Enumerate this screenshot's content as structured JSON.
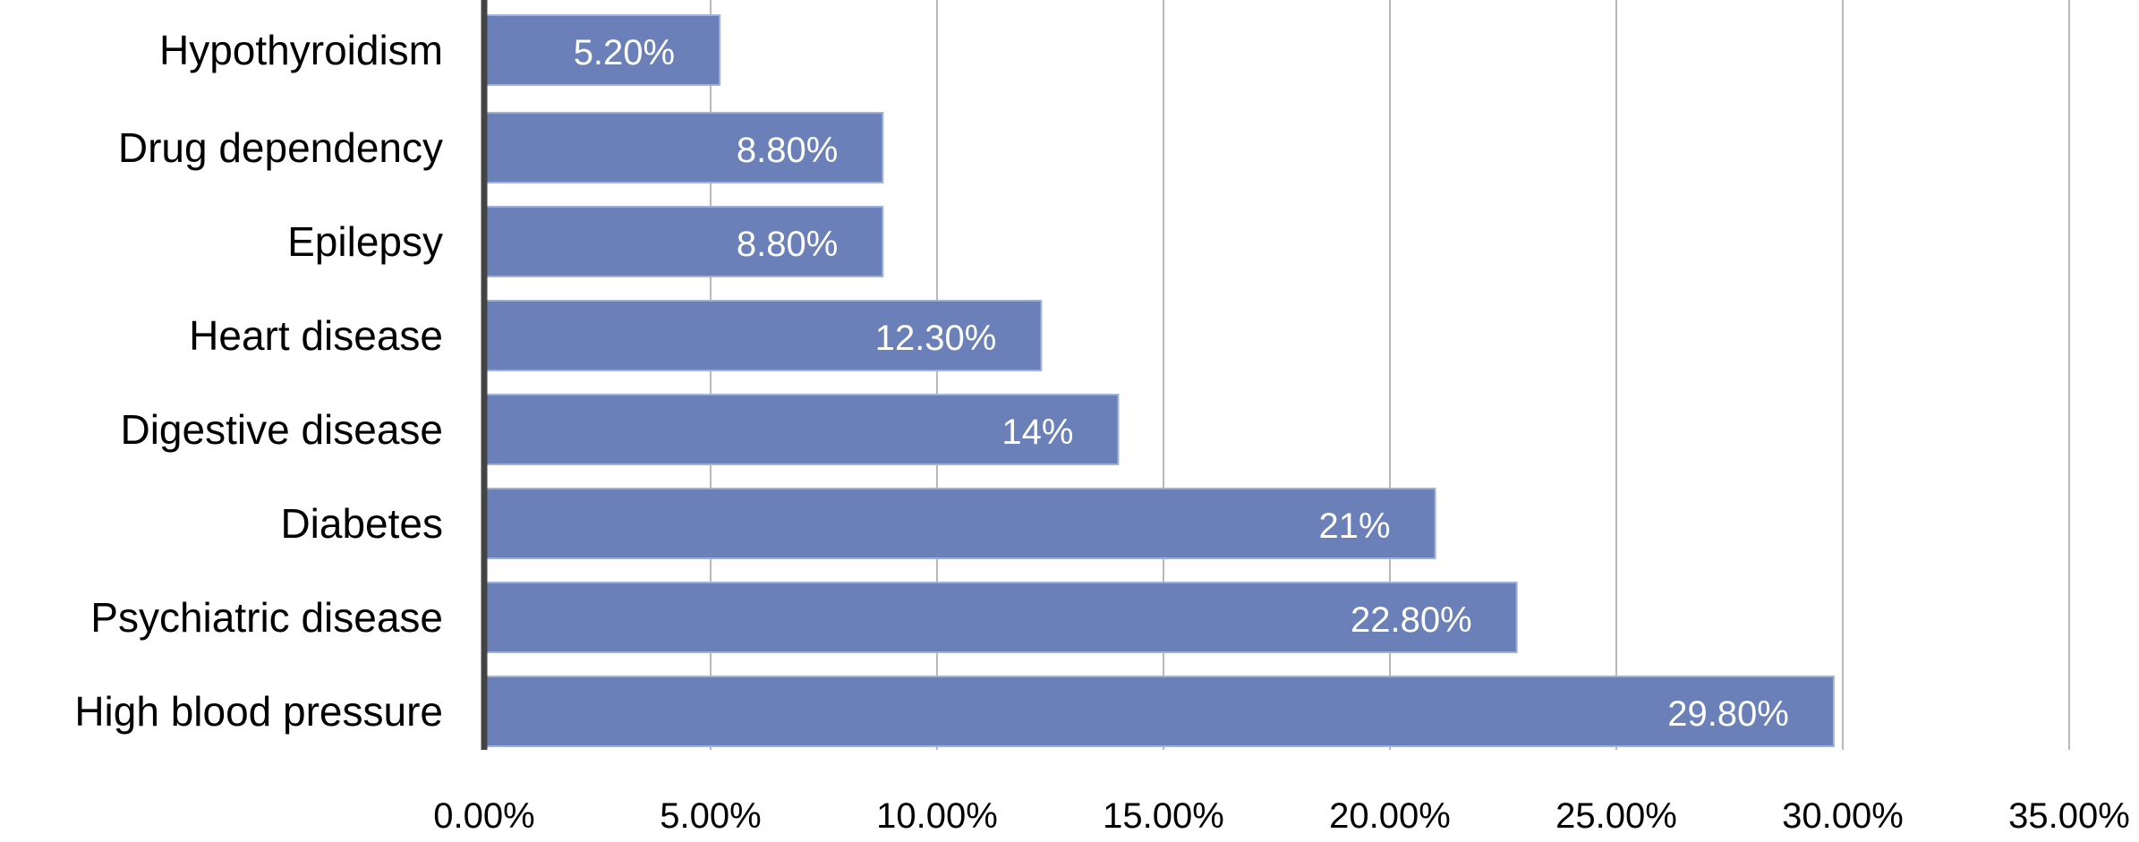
{
  "chart_data": {
    "type": "bar",
    "orientation": "horizontal",
    "categories": [
      "Hypothyroidism",
      "Drug dependency",
      "Epilepsy",
      "Heart disease",
      "Digestive disease",
      "Diabetes",
      "Psychiatric disease",
      "High blood pressure"
    ],
    "values": [
      5.2,
      8.8,
      8.8,
      12.3,
      14,
      21,
      22.8,
      29.8
    ],
    "data_labels": [
      "5.20%",
      "8.80%",
      "8.80%",
      "12.30%",
      "14%",
      "21%",
      "22.80%",
      "29.80%"
    ],
    "xlim": [
      0,
      35
    ],
    "x_ticks": [
      0,
      5,
      10,
      15,
      20,
      25,
      30,
      35
    ],
    "x_tick_labels": [
      "0.00%",
      "5.00%",
      "10.00%",
      "15.00%",
      "20.00%",
      "25.00%",
      "30.00%",
      "35.00%"
    ],
    "grid": "vertical",
    "bar_color": "#6b80b8",
    "title": "",
    "xlabel": "",
    "ylabel": ""
  }
}
